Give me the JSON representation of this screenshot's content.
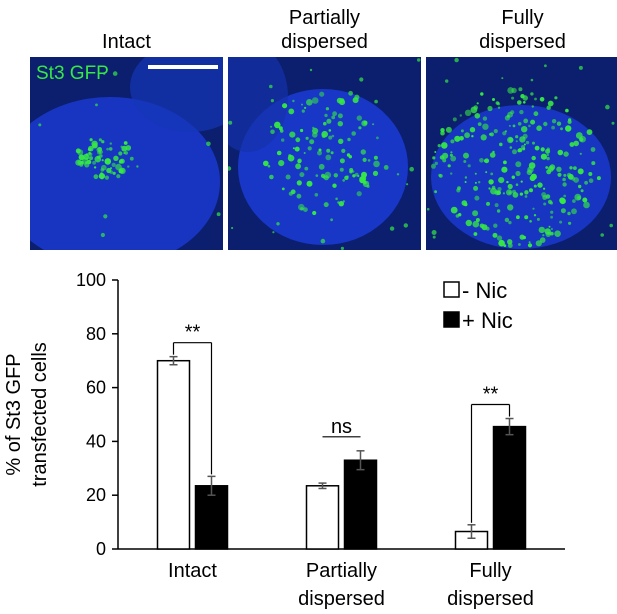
{
  "panels": [
    {
      "title": "Intact",
      "label": "St3 GFP"
    },
    {
      "title": "Partially\ndispersed"
    },
    {
      "title": "Fully\ndispersed"
    }
  ],
  "colors": {
    "nucleus": "#1a3ad0",
    "background": "#0c1f6e",
    "gfp": "#35e845"
  },
  "chart_data": {
    "type": "bar",
    "categories": [
      "Intact",
      "Partially\ndispersed",
      "Fully\ndispersed"
    ],
    "series": [
      {
        "name": "- Nic",
        "values": [
          70,
          23.5,
          6.5
        ],
        "errors": [
          1.5,
          1,
          2.5
        ],
        "color": "#ffffff"
      },
      {
        "name": "+ Nic",
        "values": [
          23.5,
          33,
          45.5
        ],
        "errors": [
          3.5,
          3.5,
          3
        ],
        "color": "#000000"
      }
    ],
    "ylabel": "% of St3 GFP\ntransfected cells",
    "yticks": [
      "0",
      "20",
      "40",
      "60",
      "80",
      "100"
    ],
    "ylim": [
      0,
      100
    ],
    "annotations": [
      "**",
      "ns",
      "**"
    ],
    "legend_position": "top-right"
  }
}
